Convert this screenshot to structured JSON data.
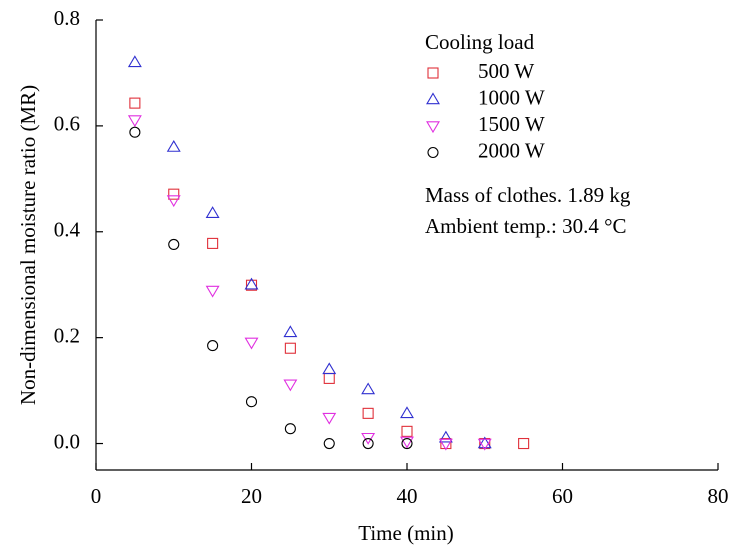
{
  "chart_data": {
    "type": "scatter",
    "xlabel": "Time (min)",
    "ylabel": "Non-dimensional moisture ratio (MR)",
    "xlim": [
      0,
      80
    ],
    "xticks": [
      0,
      20,
      40,
      60,
      80
    ],
    "ylim": [
      -0.05,
      0.8
    ],
    "yticks": [
      {
        "value": 0,
        "label": "0.0"
      },
      0.2,
      0.4,
      0.6,
      0.8
    ],
    "legend_title": "Cooling load",
    "annotations": [
      "Mass of clothes. 1.89 kg",
      "Ambient temp.: 30.4 °C"
    ],
    "series": [
      {
        "name": "500 W",
        "color": "#e0303a",
        "marker": "square",
        "x": [
          5,
          10,
          15,
          20,
          25,
          30,
          35,
          40,
          45,
          50,
          55
        ],
        "values": [
          0.643,
          0.471,
          0.378,
          0.299,
          0.18,
          0.123,
          0.057,
          0.023,
          0,
          0,
          0
        ]
      },
      {
        "name": "1000 W",
        "color": "#3030d0",
        "marker": "triangle-up",
        "x": [
          5,
          10,
          15,
          20,
          25,
          30,
          35,
          40,
          45,
          50
        ],
        "values": [
          0.72,
          0.56,
          0.435,
          0.3,
          0.21,
          0.14,
          0.102,
          0.057,
          0.011,
          0
        ]
      },
      {
        "name": "1500 W",
        "color": "#e030e0",
        "marker": "triangle-down",
        "x": [
          5,
          10,
          15,
          20,
          25,
          30,
          35,
          40,
          45,
          50
        ],
        "values": [
          0.611,
          0.46,
          0.289,
          0.191,
          0.112,
          0.049,
          0.011,
          0.004,
          0,
          0
        ]
      },
      {
        "name": "2000 W",
        "color": "#000000",
        "marker": "circle",
        "x": [
          5,
          10,
          15,
          20,
          25,
          30,
          35,
          40
        ],
        "values": [
          0.588,
          0.376,
          0.185,
          0.079,
          0.028,
          0,
          0,
          0
        ]
      }
    ]
  }
}
